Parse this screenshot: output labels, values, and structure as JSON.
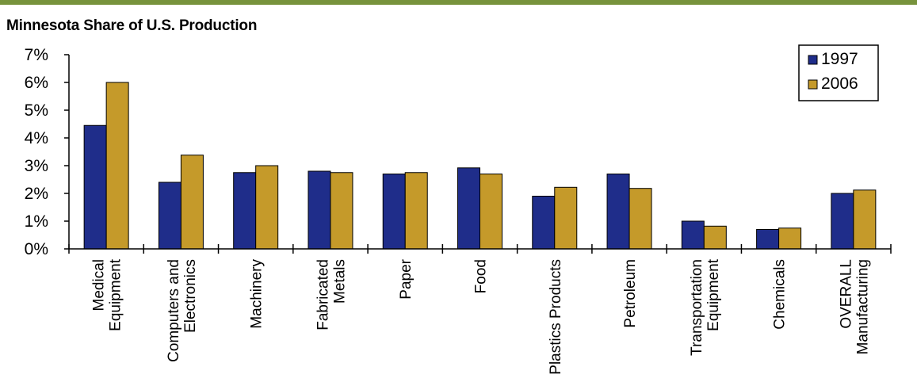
{
  "header": {
    "rule_color": "#77933C"
  },
  "chart_data": {
    "type": "bar",
    "title": "Minnesota Share of U.S. Production",
    "xlabel": "",
    "ylabel": "",
    "ylim": [
      0,
      7
    ],
    "yticks": [
      "0%",
      "1%",
      "2%",
      "3%",
      "4%",
      "5%",
      "6%",
      "7%"
    ],
    "categories": [
      [
        "Medical",
        "Equipment"
      ],
      [
        "Computers and",
        "Electronics"
      ],
      [
        "Machinery"
      ],
      [
        "Fabricated",
        "Metals"
      ],
      [
        "Paper"
      ],
      [
        "Food"
      ],
      [
        "Plastics Products"
      ],
      [
        "Petroleum"
      ],
      [
        "Transportation",
        "Equipment"
      ],
      [
        "Chemicals"
      ],
      [
        "OVERALL",
        "Manufacturing"
      ]
    ],
    "series": [
      {
        "name": "1997",
        "color": "#1F2D8A",
        "values": [
          4.45,
          2.4,
          2.75,
          2.8,
          2.7,
          2.92,
          1.9,
          2.7,
          1.0,
          0.7,
          2.0
        ]
      },
      {
        "name": "2006",
        "color": "#C59A2A",
        "values": [
          6.0,
          3.38,
          3.0,
          2.75,
          2.75,
          2.7,
          2.22,
          2.18,
          0.82,
          0.75,
          2.12
        ]
      }
    ],
    "legend_position": "top-right",
    "grid": false
  }
}
